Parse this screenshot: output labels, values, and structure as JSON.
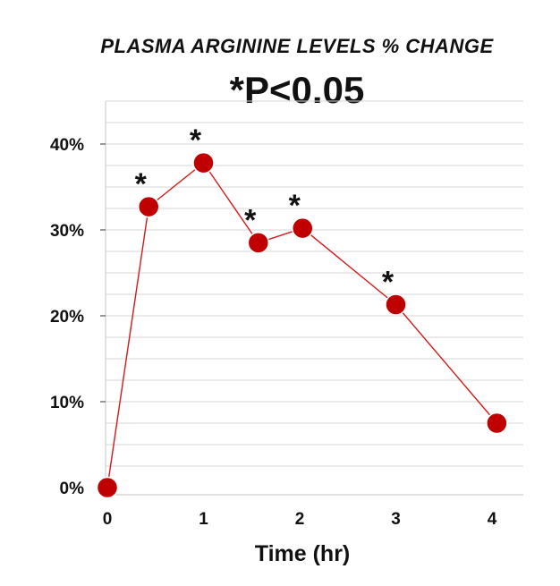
{
  "chart_data": {
    "type": "line",
    "title": "PLASMA ARGININE LEVELS % CHANGE",
    "subtitle": "*P<0.05",
    "xlabel": "Time (hr)",
    "ylabel": "",
    "xlim": [
      0,
      4.3
    ],
    "ylim": [
      0,
      45
    ],
    "x_ticks": [
      0,
      1,
      2,
      3,
      4
    ],
    "x_tick_labels": [
      "0",
      "1",
      "2",
      "3",
      "4"
    ],
    "y_ticks": [
      0,
      10,
      20,
      30,
      40
    ],
    "y_tick_labels": [
      "0%",
      "10%",
      "20%",
      "30%",
      "40%"
    ],
    "grid": true,
    "grid_minor_step": 2.5,
    "legend": "none",
    "colors": {
      "point": "#c00000",
      "line": "#d11a1a",
      "grid": "#d6d6d6",
      "text": "#111111"
    },
    "series": [
      {
        "x": [
          0,
          0.43,
          1.0,
          1.57,
          2.03,
          3.0,
          4.05
        ],
        "y": [
          0,
          32.7,
          37.8,
          28.5,
          30.2,
          21.3,
          7.5
        ],
        "significant": [
          false,
          true,
          true,
          true,
          true,
          true,
          false
        ]
      }
    ],
    "significance_marker": "*"
  }
}
